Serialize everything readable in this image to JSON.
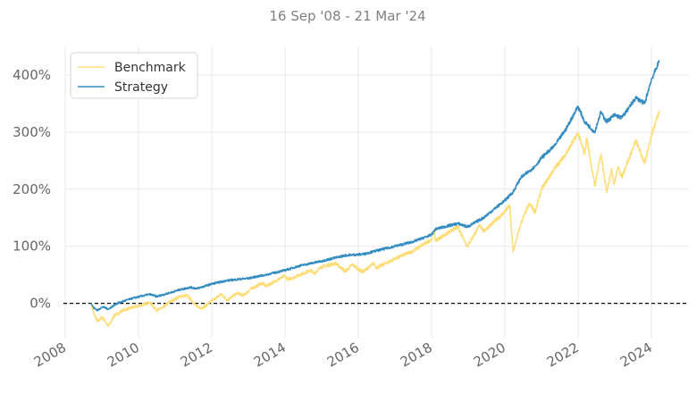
{
  "chart_data": {
    "type": "line",
    "title": "16 Sep '08 - 21 Mar '24",
    "xlabel": "",
    "ylabel": "",
    "x_ticks": [
      "2008",
      "2010",
      "2012",
      "2014",
      "2016",
      "2018",
      "2020",
      "2022",
      "2024"
    ],
    "y_ticks": [
      "0%",
      "100%",
      "200%",
      "300%",
      "400%"
    ],
    "xlim": [
      "2008-01-01",
      "2024-12-31"
    ],
    "ylim": [
      -60,
      450
    ],
    "grid": true,
    "legend_position": "top-left",
    "reference_line": {
      "y": 0,
      "style": "dashed",
      "color": "#000000"
    },
    "series": [
      {
        "name": "Benchmark",
        "color": "#fedd78",
        "points": [
          [
            "2008-09-16",
            0
          ],
          [
            "2008-10-10",
            -18
          ],
          [
            "2008-11-20",
            -32
          ],
          [
            "2009-01-06",
            -24
          ],
          [
            "2009-03-09",
            -40
          ],
          [
            "2009-05-01",
            -22
          ],
          [
            "2009-08-01",
            -12
          ],
          [
            "2009-10-15",
            -8
          ],
          [
            "2010-01-15",
            -4
          ],
          [
            "2010-04-23",
            2
          ],
          [
            "2010-07-02",
            -12
          ],
          [
            "2010-09-01",
            -8
          ],
          [
            "2010-11-01",
            2
          ],
          [
            "2011-02-18",
            12
          ],
          [
            "2011-04-29",
            14
          ],
          [
            "2011-08-08",
            -6
          ],
          [
            "2011-10-03",
            -8
          ],
          [
            "2011-12-31",
            4
          ],
          [
            "2012-04-01",
            16
          ],
          [
            "2012-06-01",
            6
          ],
          [
            "2012-09-14",
            18
          ],
          [
            "2012-11-15",
            14
          ],
          [
            "2013-01-15",
            24
          ],
          [
            "2013-05-21",
            36
          ],
          [
            "2013-06-24",
            30
          ],
          [
            "2013-12-31",
            48
          ],
          [
            "2014-02-03",
            42
          ],
          [
            "2014-09-18",
            58
          ],
          [
            "2014-10-15",
            52
          ],
          [
            "2014-12-29",
            64
          ],
          [
            "2015-05-21",
            70
          ],
          [
            "2015-08-25",
            56
          ],
          [
            "2015-11-03",
            68
          ],
          [
            "2016-02-11",
            55
          ],
          [
            "2016-06-08",
            70
          ],
          [
            "2016-06-27",
            62
          ],
          [
            "2016-12-31",
            78
          ],
          [
            "2017-06-30",
            92
          ],
          [
            "2017-12-31",
            112
          ],
          [
            "2018-01-26",
            128
          ],
          [
            "2018-02-08",
            110
          ],
          [
            "2018-09-20",
            134
          ],
          [
            "2018-12-24",
            100
          ],
          [
            "2019-04-30",
            138
          ],
          [
            "2019-06-03",
            126
          ],
          [
            "2019-12-31",
            160
          ],
          [
            "2020-02-19",
            172
          ],
          [
            "2020-03-23",
            90
          ],
          [
            "2020-06-08",
            140
          ],
          [
            "2020-09-02",
            175
          ],
          [
            "2020-10-30",
            160
          ],
          [
            "2020-12-31",
            200
          ],
          [
            "2021-05-07",
            235
          ],
          [
            "2021-09-02",
            262
          ],
          [
            "2021-12-31",
            298
          ],
          [
            "2022-03-08",
            262
          ],
          [
            "2022-03-29",
            290
          ],
          [
            "2022-06-16",
            205
          ],
          [
            "2022-08-16",
            262
          ],
          [
            "2022-10-12",
            195
          ],
          [
            "2022-12-01",
            235
          ],
          [
            "2022-12-28",
            210
          ],
          [
            "2023-02-02",
            238
          ],
          [
            "2023-03-13",
            222
          ],
          [
            "2023-07-31",
            285
          ],
          [
            "2023-10-27",
            245
          ],
          [
            "2023-12-29",
            292
          ],
          [
            "2024-03-21",
            338
          ]
        ]
      },
      {
        "name": "Strategy",
        "color": "#348dc1",
        "points": [
          [
            "2008-09-16",
            0
          ],
          [
            "2008-10-10",
            -8
          ],
          [
            "2008-11-20",
            -12
          ],
          [
            "2009-01-06",
            -6
          ],
          [
            "2009-03-09",
            -10
          ],
          [
            "2009-06-01",
            0
          ],
          [
            "2009-10-15",
            8
          ],
          [
            "2010-01-15",
            12
          ],
          [
            "2010-04-23",
            16
          ],
          [
            "2010-07-02",
            12
          ],
          [
            "2010-11-01",
            18
          ],
          [
            "2011-02-18",
            24
          ],
          [
            "2011-06-01",
            28
          ],
          [
            "2011-08-08",
            26
          ],
          [
            "2011-12-31",
            34
          ],
          [
            "2012-06-01",
            40
          ],
          [
            "2012-12-31",
            44
          ],
          [
            "2013-06-24",
            50
          ],
          [
            "2013-12-31",
            58
          ],
          [
            "2014-06-01",
            66
          ],
          [
            "2014-12-29",
            74
          ],
          [
            "2015-08-25",
            84
          ],
          [
            "2016-02-11",
            86
          ],
          [
            "2016-06-27",
            92
          ],
          [
            "2016-12-31",
            100
          ],
          [
            "2017-06-30",
            108
          ],
          [
            "2017-12-31",
            120
          ],
          [
            "2018-02-08",
            130
          ],
          [
            "2018-09-20",
            140
          ],
          [
            "2018-12-24",
            134
          ],
          [
            "2019-06-03",
            150
          ],
          [
            "2019-12-31",
            180
          ],
          [
            "2020-03-23",
            195
          ],
          [
            "2020-06-08",
            220
          ],
          [
            "2020-10-30",
            240
          ],
          [
            "2020-12-31",
            255
          ],
          [
            "2021-05-07",
            275
          ],
          [
            "2021-09-02",
            305
          ],
          [
            "2021-12-31",
            345
          ],
          [
            "2022-03-08",
            318
          ],
          [
            "2022-06-16",
            300
          ],
          [
            "2022-08-16",
            335
          ],
          [
            "2022-10-12",
            318
          ],
          [
            "2022-12-28",
            330
          ],
          [
            "2023-03-13",
            325
          ],
          [
            "2023-07-31",
            360
          ],
          [
            "2023-10-27",
            350
          ],
          [
            "2023-12-29",
            390
          ],
          [
            "2024-03-21",
            425
          ]
        ]
      }
    ]
  }
}
